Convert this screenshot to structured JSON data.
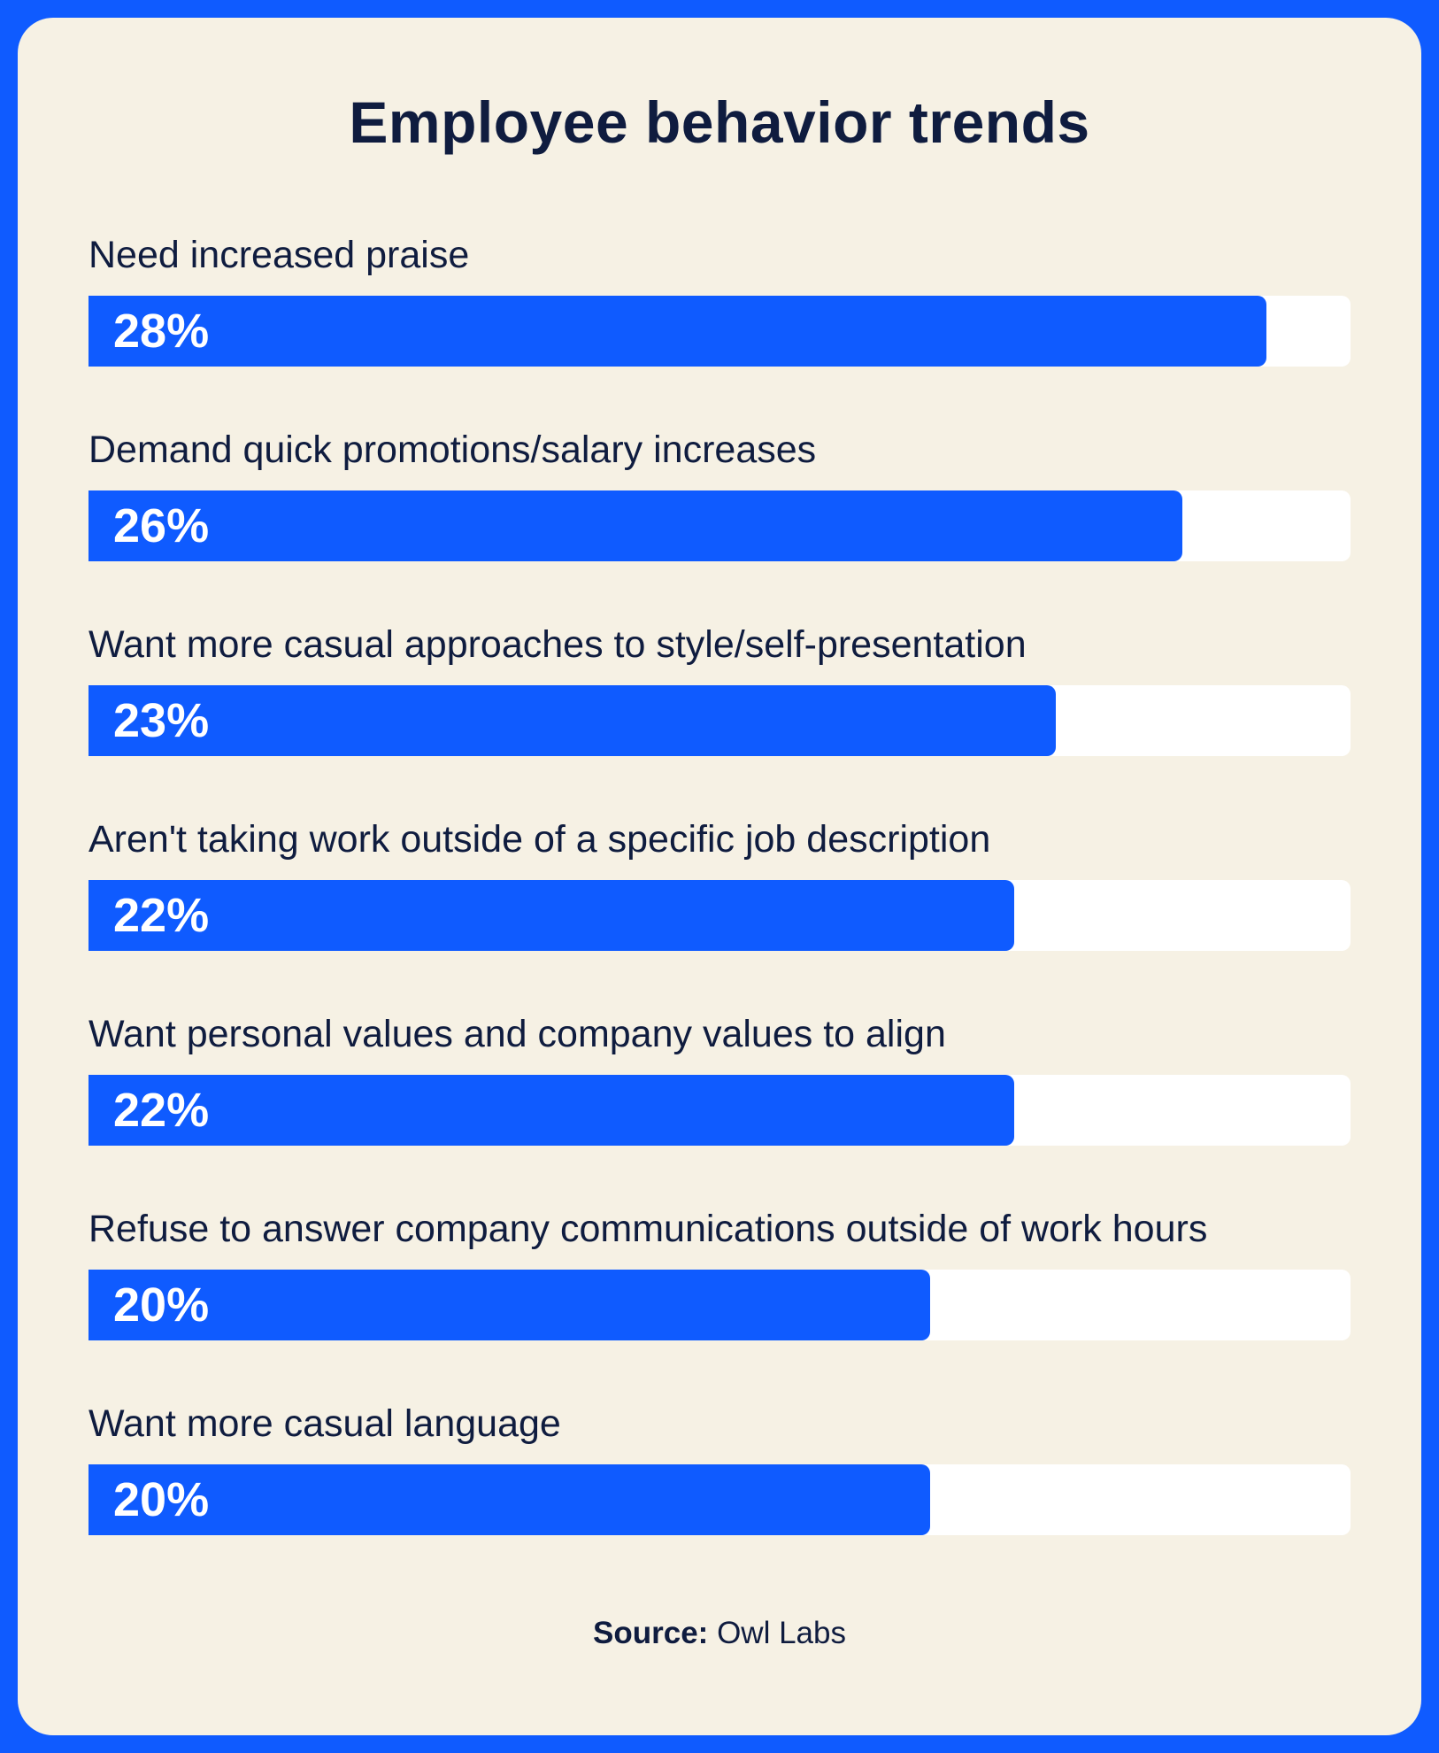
{
  "chart_data": {
    "type": "bar",
    "orientation": "horizontal",
    "title": "Employee behavior trends",
    "categories": [
      "Need increased praise",
      "Demand quick promotions/salary increases",
      "Want more casual approaches to style/self-presentation",
      "Aren't taking work outside of a specific job description",
      "Want personal values and company values to align",
      "Refuse to answer company communications outside of work hours",
      "Want more casual language"
    ],
    "values": [
      28,
      26,
      23,
      22,
      22,
      20,
      20
    ],
    "value_labels": [
      "28%",
      "26%",
      "23%",
      "22%",
      "22%",
      "20%",
      "20%"
    ],
    "xlim": [
      0,
      30
    ],
    "unit": "%",
    "source_label": "Source:",
    "source": "Owl Labs"
  },
  "colors": {
    "bar": "#0f5bff",
    "track": "#ffffff",
    "background": "#f6f1e4",
    "frame": "#0f5bff",
    "text": "#0f1c3f"
  }
}
